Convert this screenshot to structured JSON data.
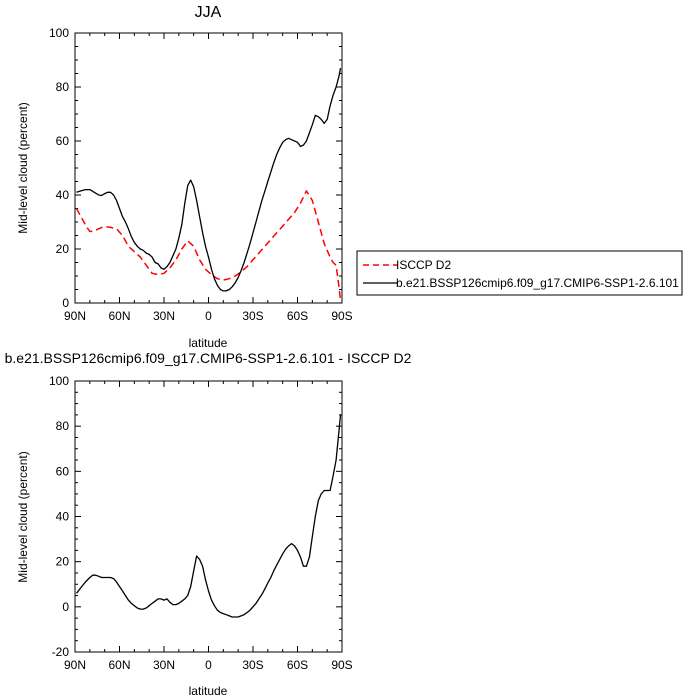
{
  "chart_data": [
    {
      "type": "line",
      "title": "JJA",
      "xlabel": "latitude",
      "ylabel": "Mid-level cloud (percent)",
      "xlim": [
        90,
        -90
      ],
      "ylim": [
        0,
        100
      ],
      "x_ticks": [
        90,
        60,
        30,
        0,
        -30,
        -60,
        -90
      ],
      "x_tick_labels": [
        "90N",
        "60N",
        "30N",
        "0",
        "30S",
        "60S",
        "90S"
      ],
      "y_ticks": [
        0,
        20,
        40,
        60,
        80,
        100
      ],
      "y_tick_labels": [
        "0",
        "20",
        "40",
        "60",
        "80",
        "100"
      ],
      "legend": "outside-right",
      "series": [
        {
          "name": "ISCCP D2",
          "color": "#ff0000",
          "dash": "dashed",
          "x": [
            89,
            86,
            84,
            82,
            80,
            78,
            76,
            74,
            72,
            70,
            66,
            62,
            58,
            54,
            50,
            46,
            42,
            38,
            34,
            30,
            26,
            22,
            18,
            14,
            10,
            6,
            2,
            -2,
            -6,
            -10,
            -14,
            -18,
            -22,
            -26,
            -30,
            -34,
            -38,
            -42,
            -46,
            -50,
            -54,
            -58,
            -62,
            -66,
            -70,
            -74,
            -78,
            -82,
            -84,
            -86,
            -88,
            -89
          ],
          "y": [
            35,
            32,
            30,
            28,
            26.5,
            26.5,
            27,
            27.5,
            28,
            28.3,
            28,
            27.5,
            25,
            21,
            19,
            17,
            14,
            11,
            10.5,
            11,
            13,
            16,
            20,
            23,
            21,
            16,
            12.5,
            10.5,
            9,
            8.5,
            9,
            10,
            11.5,
            13.5,
            16,
            18.5,
            21,
            23.5,
            26,
            28.5,
            31,
            33.5,
            37,
            41.5,
            38,
            30,
            22,
            17,
            15,
            14,
            6,
            1
          ]
        },
        {
          "name": "b.e21.BSSP126cmip6.f09_g17.CMIP6-SSP1-2.6.101",
          "color": "#000000",
          "dash": "solid",
          "x": [
            89,
            86,
            83,
            80,
            77,
            74,
            72,
            70,
            68,
            66,
            64,
            62,
            60,
            58,
            56,
            54,
            52,
            50,
            48,
            46,
            44,
            42,
            40,
            38,
            36,
            34,
            32,
            30,
            28,
            26,
            24,
            22,
            20,
            18,
            16,
            14,
            12,
            10,
            8,
            6,
            4,
            2,
            0,
            -2,
            -4,
            -6,
            -8,
            -10,
            -12,
            -14,
            -16,
            -18,
            -20,
            -22,
            -24,
            -26,
            -28,
            -30,
            -32,
            -34,
            -36,
            -38,
            -40,
            -42,
            -44,
            -46,
            -48,
            -50,
            -52,
            -54,
            -56,
            -58,
            -60,
            -62,
            -64,
            -66,
            -68,
            -70,
            -72,
            -74,
            -76,
            -78,
            -80,
            -82,
            -84,
            -86,
            -88,
            -89
          ],
          "y": [
            41,
            41.5,
            42,
            42,
            41,
            40,
            39.8,
            40.5,
            41,
            41,
            40,
            38,
            35,
            32,
            30,
            27.5,
            24.5,
            22.5,
            21,
            20,
            19.5,
            18.5,
            18,
            17,
            15,
            14.5,
            13,
            12.5,
            13.5,
            15,
            17.5,
            20,
            24,
            29,
            37,
            43.5,
            45.5,
            43,
            38,
            32,
            26,
            21,
            17,
            12.5,
            9,
            6.5,
            5,
            4.5,
            4.5,
            5,
            6,
            7.5,
            9.5,
            12,
            15,
            18.5,
            22,
            26,
            30,
            34,
            38,
            41.5,
            45,
            48.5,
            52,
            55,
            57.5,
            59.5,
            60.5,
            61,
            60.5,
            60,
            59.5,
            58,
            58.5,
            60,
            63,
            66,
            69.5,
            69,
            68,
            66.5,
            68,
            73,
            77,
            80,
            84,
            87
          ]
        }
      ]
    },
    {
      "type": "line",
      "title": "b.e21.BSSP126cmip6.f09_g17.CMIP6-SSP1-2.6.101 - ISCCP D2",
      "xlabel": "latitude",
      "ylabel": "Mid-level cloud (percent)",
      "xlim": [
        90,
        -90
      ],
      "ylim": [
        -20,
        100
      ],
      "x_ticks": [
        90,
        60,
        30,
        0,
        -30,
        -60,
        -90
      ],
      "x_tick_labels": [
        "90N",
        "60N",
        "30N",
        "0",
        "30S",
        "60S",
        "90S"
      ],
      "y_ticks": [
        -20,
        0,
        20,
        40,
        60,
        80,
        100
      ],
      "y_tick_labels": [
        "-20",
        "0",
        "20",
        "40",
        "60",
        "80",
        "100"
      ],
      "series": [
        {
          "color": "#000000",
          "dash": "solid",
          "x": [
            89,
            86,
            83,
            80,
            78,
            76,
            74,
            72,
            70,
            68,
            66,
            64,
            62,
            60,
            58,
            56,
            54,
            52,
            50,
            48,
            46,
            44,
            42,
            40,
            38,
            36,
            34,
            32,
            30,
            28,
            26,
            24,
            22,
            20,
            18,
            16,
            14,
            12,
            10,
            8,
            6,
            4,
            2,
            0,
            -2,
            -4,
            -6,
            -8,
            -10,
            -12,
            -14,
            -16,
            -18,
            -20,
            -22,
            -24,
            -26,
            -28,
            -30,
            -32,
            -34,
            -36,
            -38,
            -40,
            -42,
            -44,
            -46,
            -48,
            -50,
            -52,
            -54,
            -56,
            -58,
            -60,
            -62,
            -64,
            -66,
            -68,
            -70,
            -72,
            -74,
            -76,
            -78,
            -80,
            -82,
            -84,
            -86,
            -88,
            -89
          ],
          "y": [
            6,
            8.5,
            11,
            13,
            14,
            14,
            13.5,
            13,
            13,
            13,
            13,
            12.5,
            11,
            9,
            7,
            5,
            3,
            1.5,
            0.5,
            -0.5,
            -1,
            -1,
            -0.5,
            0.5,
            1.5,
            2.5,
            3.5,
            3.5,
            3,
            3.5,
            2,
            1,
            1,
            1.5,
            2.5,
            3.5,
            5,
            9,
            16,
            22.5,
            21,
            18,
            12,
            7,
            3,
            0.5,
            -1.5,
            -2.5,
            -3,
            -3.5,
            -4,
            -4.5,
            -4.5,
            -4.5,
            -4,
            -3.5,
            -2.5,
            -1.5,
            0,
            1.5,
            3.5,
            5.5,
            8,
            10.5,
            13,
            16,
            18.5,
            21,
            23.5,
            25.5,
            27,
            28,
            27,
            25,
            22,
            18,
            18,
            22,
            31,
            40,
            47,
            50,
            51.5,
            51.5,
            51.5,
            58,
            65,
            78,
            85
          ]
        }
      ]
    }
  ]
}
